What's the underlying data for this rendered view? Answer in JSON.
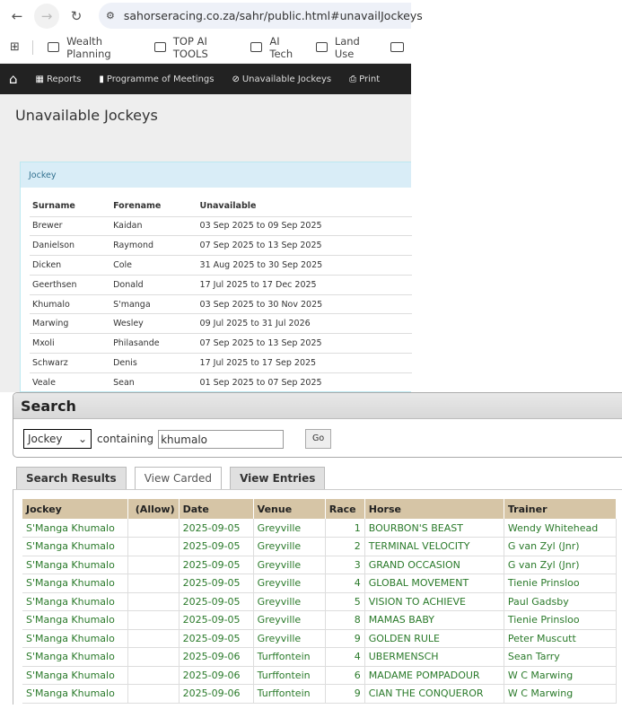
{
  "browser": {
    "url": "sahorseracing.co.za/sahr/public.html#unavailJockeys",
    "bookmarks": [
      "Wealth Planning",
      "TOP AI TOOLS",
      "AI Tech",
      "Land Use",
      ""
    ]
  },
  "nav": {
    "items": [
      {
        "label": "Reports",
        "icon": "grid-icon"
      },
      {
        "label": "Programme of Meetings",
        "icon": "book-icon"
      },
      {
        "label": "Unavailable Jockeys",
        "icon": "ban-icon"
      },
      {
        "label": "Print",
        "icon": "print-icon"
      }
    ]
  },
  "page": {
    "title": "Unavailable Jockeys"
  },
  "panel": {
    "heading": "Jockey",
    "columns": [
      "Surname",
      "Forename",
      "Unavailable"
    ],
    "rows": [
      [
        "Brewer",
        "Kaidan",
        "03 Sep 2025 to 09 Sep 2025"
      ],
      [
        "Danielson",
        "Raymond",
        "07 Sep 2025 to 13 Sep 2025"
      ],
      [
        "Dicken",
        "Cole",
        "31 Aug 2025 to 30 Sep 2025"
      ],
      [
        "Geerthsen",
        "Donald",
        "17 Jul 2025 to 17 Dec 2025"
      ],
      [
        "Khumalo",
        "S'manga",
        "03 Sep 2025 to 30 Nov 2025"
      ],
      [
        "Marwing",
        "Wesley",
        "09 Jul 2025 to 31 Jul 2026"
      ],
      [
        "Mxoli",
        "Philasande",
        "07 Sep 2025 to 13 Sep 2025"
      ],
      [
        "Schwarz",
        "Denis",
        "17 Jul 2025 to 17 Sep 2025"
      ],
      [
        "Veale",
        "Sean",
        "01 Sep 2025 to 07 Sep 2025"
      ]
    ]
  },
  "search": {
    "title": "Search",
    "field": "Jockey",
    "containing": "containing",
    "query": "khumalo",
    "go": "Go",
    "tabs": [
      "Search Results",
      "View Carded",
      "View Entries"
    ],
    "active_tab": "View Carded"
  },
  "results": {
    "columns": [
      "Jockey",
      "(Allow)",
      "Date",
      "Venue",
      "Race",
      "Horse",
      "Trainer"
    ],
    "rows": [
      [
        "S'Manga Khumalo",
        "",
        "2025-09-05",
        "Greyville",
        "1",
        "BOURBON'S BEAST",
        "Wendy Whitehead"
      ],
      [
        "S'Manga Khumalo",
        "",
        "2025-09-05",
        "Greyville",
        "2",
        "TERMINAL VELOCITY",
        "G van Zyl (Jnr)"
      ],
      [
        "S'Manga Khumalo",
        "",
        "2025-09-05",
        "Greyville",
        "3",
        "GRAND OCCASION",
        "G van Zyl (Jnr)"
      ],
      [
        "S'Manga Khumalo",
        "",
        "2025-09-05",
        "Greyville",
        "4",
        "GLOBAL MOVEMENT",
        "Tienie Prinsloo"
      ],
      [
        "S'Manga Khumalo",
        "",
        "2025-09-05",
        "Greyville",
        "5",
        "VISION TO ACHIEVE",
        "Paul Gadsby"
      ],
      [
        "S'Manga Khumalo",
        "",
        "2025-09-05",
        "Greyville",
        "8",
        "MAMAS BABY",
        "Tienie Prinsloo"
      ],
      [
        "S'Manga Khumalo",
        "",
        "2025-09-05",
        "Greyville",
        "9",
        "GOLDEN RULE",
        "Peter Muscutt"
      ],
      [
        "S'Manga Khumalo",
        "",
        "2025-09-06",
        "Turffontein",
        "4",
        "UBERMENSCH",
        "Sean Tarry"
      ],
      [
        "S'Manga Khumalo",
        "",
        "2025-09-06",
        "Turffontein",
        "6",
        "MADAME POMPADOUR",
        "W C Marwing"
      ],
      [
        "S'Manga Khumalo",
        "",
        "2025-09-06",
        "Turffontein",
        "9",
        "CIAN THE CONQUEROR",
        "W C Marwing"
      ]
    ]
  },
  "colors": {
    "nav_bg": "#222222",
    "panel_heading_bg": "#d9edf7",
    "results_header_bg": "#d6c5a6",
    "results_text": "#2a7a2a"
  }
}
